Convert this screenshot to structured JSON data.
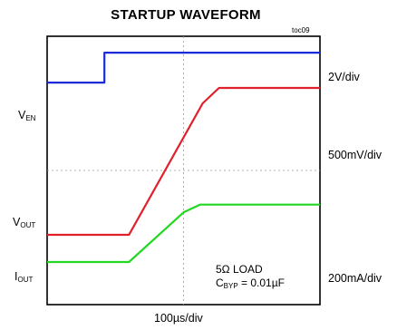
{
  "title": "STARTUP WAVEFORM",
  "tag": "toc09",
  "chart_data": {
    "type": "line",
    "xlabel": "100µs/div",
    "scales": {
      "ven": "2V/div",
      "vout": "500mV/div",
      "iout": "200mA/div"
    },
    "xlim": [
      0,
      10
    ],
    "ylim": [
      0,
      8
    ],
    "grid": true,
    "series": [
      {
        "name": "VEN",
        "label_main": "V",
        "label_sub": "EN",
        "color": "#1a2ad6",
        "points": [
          [
            0,
            6.62
          ],
          [
            2.1,
            6.62
          ],
          [
            2.1,
            7.51
          ],
          [
            10,
            7.51
          ]
        ]
      },
      {
        "name": "VOUT",
        "label_main": "V",
        "label_sub": "OUT",
        "color": "#e0202a",
        "points": [
          [
            0,
            2.08
          ],
          [
            3.0,
            2.08
          ],
          [
            5.7,
            6.0
          ],
          [
            6.3,
            6.46
          ],
          [
            10,
            6.46
          ]
        ]
      },
      {
        "name": "IOUT",
        "label_main": "I",
        "label_sub": "OUT",
        "color": "#22d822",
        "points": [
          [
            0,
            1.27
          ],
          [
            3.0,
            1.27
          ],
          [
            5.0,
            2.75
          ],
          [
            5.6,
            2.98
          ],
          [
            10,
            2.98
          ]
        ]
      }
    ],
    "annotations": {
      "load": "5Ω LOAD",
      "cbyp_main": "C",
      "cbyp_sub": "BYP",
      "cbyp_value": " = 0.01µF"
    }
  }
}
